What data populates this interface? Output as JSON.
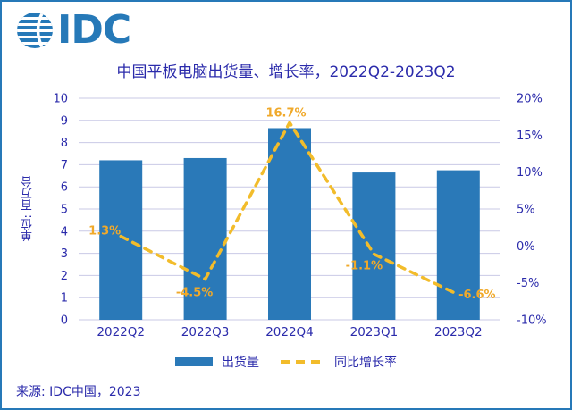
{
  "frame": {
    "border_color": "#2679B8",
    "background": "#FFFFFF"
  },
  "logo": {
    "text": "IDC",
    "icon": "globe-icon",
    "color": "#2679B8"
  },
  "header": {
    "title": "中国平板电脑出货量、增长率，2022Q2-2023Q2",
    "color": "#2B2BAB"
  },
  "chart_data": {
    "type": "bar",
    "title": "中国平板电脑出货量、增长率，2022Q2-2023Q2",
    "categories": [
      "2022Q2",
      "2022Q3",
      "2022Q4",
      "2023Q1",
      "2023Q2"
    ],
    "series": [
      {
        "name": "出货量",
        "type": "bar",
        "axis": "left",
        "unit": "百万台",
        "values": [
          7.2,
          7.3,
          8.65,
          6.65,
          6.75
        ],
        "color": "#2A79B8"
      },
      {
        "name": "同比增长率",
        "type": "line",
        "axis": "right",
        "dashed": true,
        "values": [
          1.3,
          -4.5,
          16.7,
          -1.1,
          -6.6
        ],
        "point_labels": [
          "1.3%",
          "-4.5%",
          "16.7%",
          "-1.1%",
          "-6.6%"
        ],
        "color": "#F2BC2B",
        "label_color": "#F0A92A"
      }
    ],
    "left_axis": {
      "title": "单位: 百万台",
      "min": 0,
      "max": 10,
      "tick_values": [
        0,
        1,
        2,
        3,
        4,
        5,
        6,
        7,
        8,
        9,
        10
      ]
    },
    "right_axis": {
      "min": -10,
      "max": 20,
      "tick_values": [
        20,
        15,
        10,
        5,
        0,
        -5,
        -10
      ],
      "tick_labels": [
        "20%",
        "15%",
        "10%",
        "5%",
        "0%",
        "-5%",
        "-10%"
      ]
    },
    "grid": true,
    "grid_color": "#C9C9E6",
    "axis_text_color": "#2B2BAB",
    "legend_position": "bottom"
  },
  "legend": {
    "items": [
      {
        "label": "出货量",
        "swatch": "bar"
      },
      {
        "label": "同比增长率",
        "swatch": "dashed-line"
      }
    ]
  },
  "footer": {
    "source": "来源: IDC中国，2023"
  }
}
